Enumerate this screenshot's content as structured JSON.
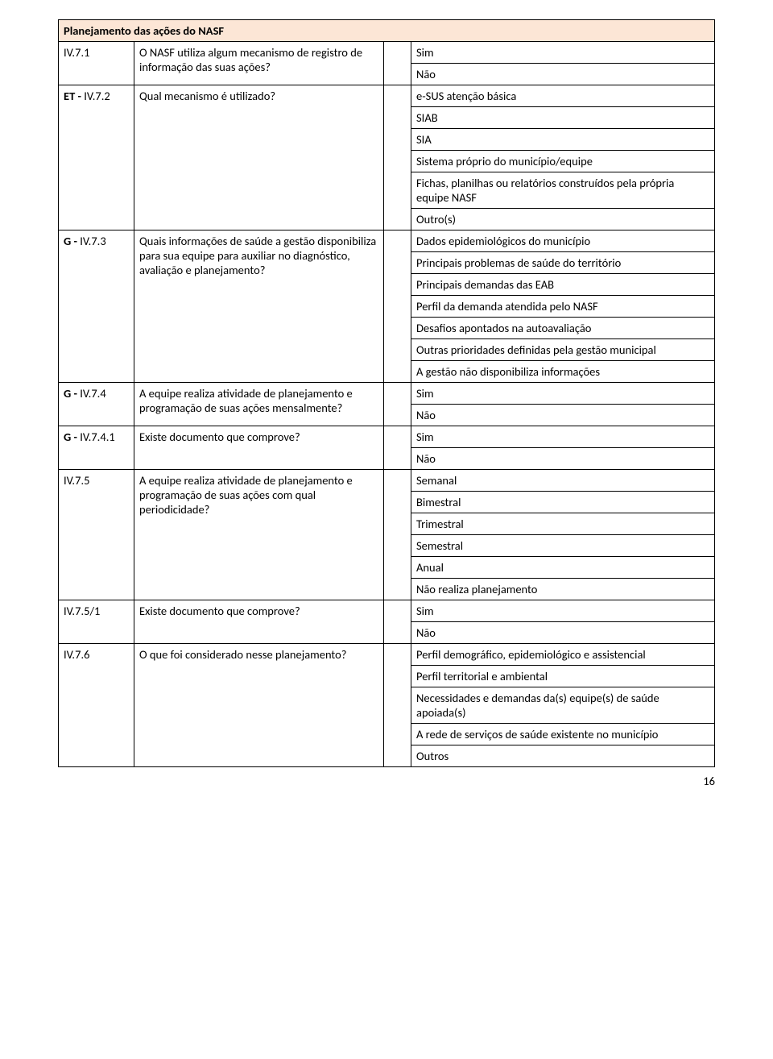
{
  "header_title": "Planejamento das ações do NASF",
  "page_number": "16",
  "rows": [
    {
      "code": "IV.7.1",
      "code_bold": false,
      "question": "O NASF utiliza algum mecanismo de registro de informação das suas ações?",
      "answers": [
        "Sim",
        "Não"
      ]
    },
    {
      "code": "ET - IV.7.2",
      "code_html": "<b>ET -</b> IV.7.2",
      "question": "Qual mecanismo é utilizado?",
      "answers": [
        "e-SUS atenção básica",
        "SIAB",
        "SIA",
        "Sistema próprio do município/equipe",
        "Fichas, planilhas ou relatórios construídos pela própria equipe NASF",
        "Outro(s)"
      ]
    },
    {
      "code": "G - IV.7.3",
      "code_html": "<b>G -</b> IV.7.3",
      "question": "Quais informações de saúde a gestão disponibiliza para sua equipe para auxiliar no diagnóstico, avaliação e planejamento?",
      "answers": [
        "Dados epidemiológicos do município",
        "Principais problemas de saúde do território",
        "Principais demandas das EAB",
        "Perfil da demanda atendida pelo NASF",
        "Desafios apontados na autoavaliação",
        "Outras prioridades definidas pela gestão municipal",
        "A gestão não disponibiliza informações"
      ]
    },
    {
      "code": "G - IV.7.4",
      "code_html": "<b>G -</b> IV.7.4",
      "question": "A equipe realiza atividade de planejamento e programação de suas ações mensalmente?",
      "answers": [
        "Sim",
        "Não"
      ]
    },
    {
      "code": "G - IV.7.4.1",
      "code_html": "<b>G -</b> IV.7.4.1",
      "question": "Existe documento que comprove?",
      "answers": [
        "Sim",
        "Não"
      ]
    },
    {
      "code": "IV.7.5",
      "question": "A equipe realiza atividade de planejamento e programação de suas ações com qual periodicidade?",
      "answers": [
        "Semanal",
        "Bimestral",
        "Trimestral",
        "Semestral",
        "Anual",
        "Não realiza planejamento"
      ]
    },
    {
      "code": "IV.7.5/1",
      "question": "Existe documento que comprove?",
      "answers": [
        "Sim",
        "Não"
      ]
    },
    {
      "code": "IV.7.6",
      "question": "O que foi considerado nesse planejamento?",
      "answers": [
        "Perfil demográfico, epidemiológico e assistencial",
        "Perfil territorial e ambiental",
        "Necessidades e demandas da(s) equipe(s) de saúde apoiada(s)",
        "A rede de serviços de saúde existente no município",
        "Outros"
      ]
    }
  ]
}
